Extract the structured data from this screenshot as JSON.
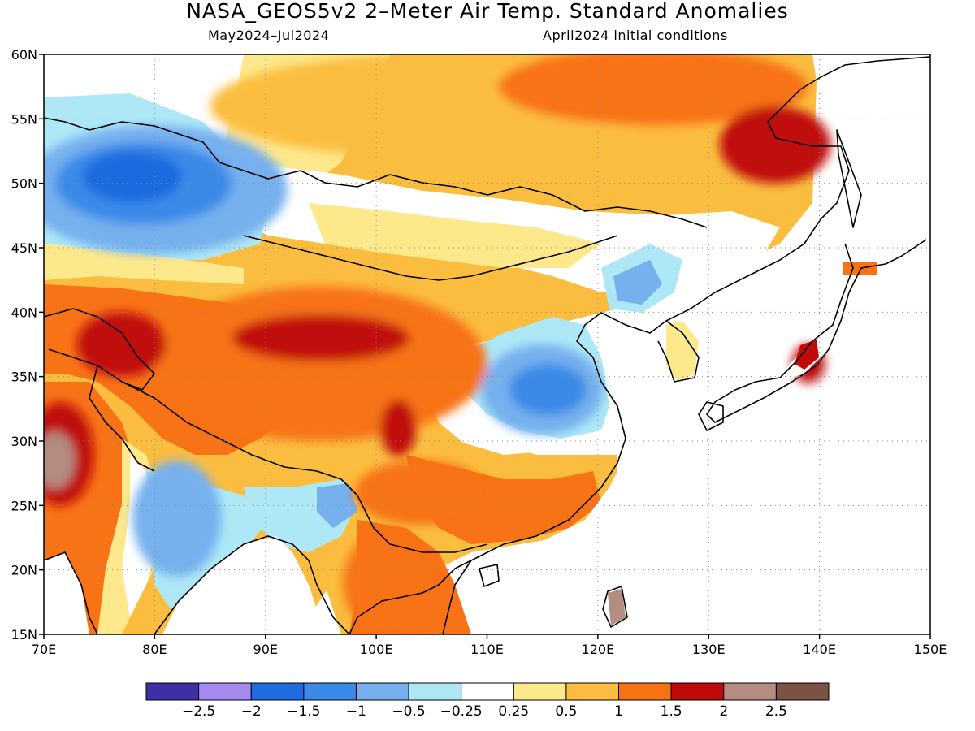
{
  "title": "NASA_GEOS5v2 2–Meter Air Temp. Standard Anomalies",
  "subtitle_left": "May2024–Jul2024",
  "subtitle_right": "April2024 initial conditions",
  "map": {
    "lon_range": [
      70,
      150
    ],
    "lat_range": [
      15,
      60
    ],
    "lon_ticks": [
      "70E",
      "80E",
      "90E",
      "100E",
      "110E",
      "120E",
      "130E",
      "140E",
      "150E"
    ],
    "lat_ticks": [
      "60N",
      "55N",
      "50N",
      "45N",
      "40N",
      "35N",
      "30N",
      "25N",
      "20N",
      "15N"
    ],
    "grid": "dotted"
  },
  "colorbar": {
    "colors": [
      "#3d2fa8",
      "#a58af2",
      "#1f6be0",
      "#3a8ae8",
      "#76b0ee",
      "#aee8f7",
      "#ffffff",
      "#fde98c",
      "#fbbd40",
      "#f87216",
      "#c00a0a",
      "#b48c82",
      "#7c5245"
    ],
    "labels": [
      "−2.5",
      "−2",
      "−1.5",
      "−1",
      "−0.5",
      "−0.25",
      "0.25",
      "0.5",
      "1",
      "1.5",
      "2",
      "2.5"
    ]
  },
  "anomaly_regions": [
    {
      "name": "kazakhstan-cold",
      "lon": 80,
      "lat": 49.5,
      "rx": 12,
      "ry": 5,
      "level": "#76b0ee"
    },
    {
      "name": "kazakhstan-core",
      "lon": 79,
      "lat": 50,
      "rx": 8,
      "ry": 3.2,
      "level": "#3a8ae8"
    },
    {
      "name": "kazakhstan-center",
      "lon": 78,
      "lat": 50.5,
      "rx": 4.5,
      "ry": 2,
      "level": "#1f6be0"
    },
    {
      "name": "siberia-warm",
      "lon": 105,
      "lat": 56,
      "rx": 20,
      "ry": 4,
      "level": "#fbbd40"
    },
    {
      "name": "east-siberia-hot",
      "lon": 125,
      "lat": 57.5,
      "rx": 14,
      "ry": 3,
      "level": "#f87216"
    },
    {
      "name": "northeast-china-hot",
      "lon": 136,
      "lat": 53,
      "rx": 5,
      "ry": 3,
      "level": "#c00a0a"
    },
    {
      "name": "tibet-warm",
      "lon": 95,
      "lat": 36,
      "rx": 15,
      "ry": 6,
      "level": "#f87216"
    },
    {
      "name": "tibet-hot",
      "lon": 95,
      "lat": 38,
      "rx": 8,
      "ry": 1.8,
      "level": "#c00a0a"
    },
    {
      "name": "tarim-hot",
      "lon": 77,
      "lat": 37.5,
      "rx": 4,
      "ry": 2.5,
      "level": "#c00a0a"
    },
    {
      "name": "pakistan-hot",
      "lon": 71.5,
      "lat": 29,
      "rx": 3,
      "ry": 4,
      "level": "#c00a0a"
    },
    {
      "name": "pakistan-extreme",
      "lon": 71,
      "lat": 28.5,
      "rx": 1.8,
      "ry": 2.2,
      "level": "#b48c82"
    },
    {
      "name": "india-cool",
      "lon": 82,
      "lat": 24,
      "rx": 4,
      "ry": 4.5,
      "level": "#76b0ee"
    },
    {
      "name": "east-china-cold",
      "lon": 115,
      "lat": 34,
      "rx": 5.5,
      "ry": 3.5,
      "level": "#76b0ee"
    },
    {
      "name": "east-china-core",
      "lon": 115.5,
      "lat": 34,
      "rx": 3.5,
      "ry": 2,
      "level": "#3a8ae8"
    },
    {
      "name": "south-china-hot",
      "lon": 104,
      "lat": 26,
      "rx": 6,
      "ry": 2.5,
      "level": "#f87216"
    },
    {
      "name": "sichuan-hot",
      "lon": 102,
      "lat": 31,
      "rx": 1.6,
      "ry": 2.2,
      "level": "#c00a0a"
    },
    {
      "name": "indochina-hot",
      "lon": 101,
      "lat": 19,
      "rx": 4,
      "ry": 4,
      "level": "#f87216"
    },
    {
      "name": "japan-hot",
      "lon": 139,
      "lat": 36,
      "rx": 1.5,
      "ry": 1.5,
      "level": "#c00a0a"
    }
  ]
}
